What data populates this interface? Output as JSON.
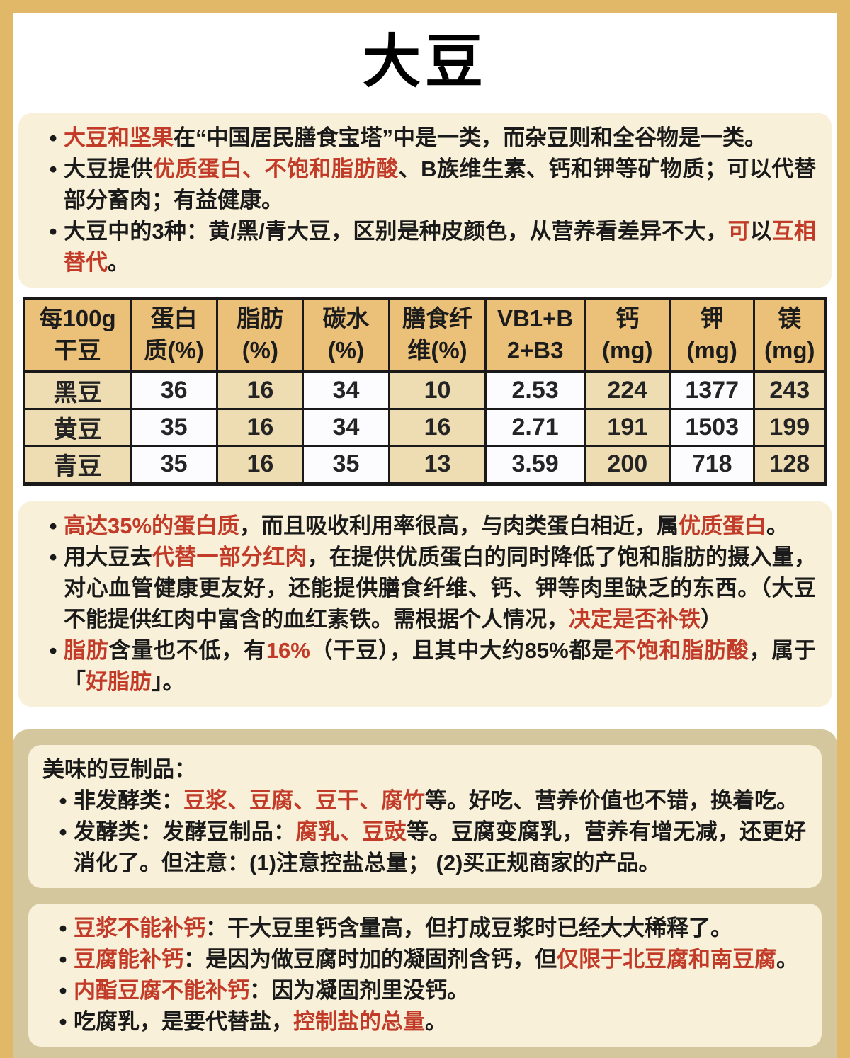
{
  "page": {
    "title": "大豆"
  },
  "glyphs": {
    "bullet": "•"
  },
  "colors": {
    "outer_border": "#e1b867",
    "panel_cream": "#f8f0d8",
    "bottom_container_tan": "#d5c79d",
    "table_header_bg": "#ebc078",
    "table_tan_cell": "#eedcb2",
    "accent_red": "#c23a28",
    "text_black": "#1a1a1a"
  },
  "sections": {
    "intro": {
      "bullets": [
        [
          {
            "t": "大豆和坚果",
            "c": "red"
          },
          {
            "t": "在“中国居民膳食宝塔”中是一类，而杂豆则和全谷物是一类。"
          }
        ],
        [
          {
            "t": "大豆提供"
          },
          {
            "t": "优质蛋白、不饱和脂肪酸",
            "c": "red"
          },
          {
            "t": "、B族维生素、钙和钾等矿物质；可以代替部分畜肉；有益健康。"
          }
        ],
        [
          {
            "t": "大豆中的3种：黄/黑/青大豆，区别是种皮颜色，从营养看差异不大，"
          },
          {
            "t": "可",
            "c": "red"
          },
          {
            "t": "以"
          },
          {
            "t": "互相替代",
            "c": "red"
          },
          {
            "t": "。"
          }
        ]
      ]
    },
    "analysis": {
      "bullets": [
        [
          {
            "t": "高达35%的蛋白质",
            "c": "red"
          },
          {
            "t": "，而且吸收利用率很高，与肉类蛋白相近，属"
          },
          {
            "t": "优质蛋白",
            "c": "red"
          },
          {
            "t": "。"
          }
        ],
        [
          {
            "t": "用大豆去"
          },
          {
            "t": "代替一部分红肉",
            "c": "red"
          },
          {
            "t": "，在提供优质蛋白的同时降低了饱和脂肪的摄入量，对心血管健康更友好，还能提供膳食纤维、钙、钾等肉里缺乏的东西。（大豆不能提供红肉中富含的血红素铁。需根据个人情况，"
          },
          {
            "t": "决定是否补铁",
            "c": "red"
          },
          {
            "t": "）"
          }
        ],
        [
          {
            "t": "脂肪",
            "c": "red"
          },
          {
            "t": "含量也不低，有"
          },
          {
            "t": "16%",
            "c": "red"
          },
          {
            "t": "（干豆），且其中大约85%都是"
          },
          {
            "t": "不饱和脂肪酸",
            "c": "red"
          },
          {
            "t": "，属于「"
          },
          {
            "t": "好脂肪",
            "c": "red"
          },
          {
            "t": "」。"
          }
        ]
      ]
    },
    "products": {
      "header": "美味的豆制品：",
      "bullets": [
        [
          {
            "t": "非发酵类："
          },
          {
            "t": "豆浆、豆腐、豆干、腐竹",
            "c": "red"
          },
          {
            "t": "等。好吃、营养价值也不错，换着吃。"
          }
        ],
        [
          {
            "t": "发酵类：发酵豆制品："
          },
          {
            "t": "腐乳、豆豉",
            "c": "red"
          },
          {
            "t": "等。豆腐变腐乳，营养有增无减，还更好消化了。但注意：(1)注意控盐总量； (2)买正规商家的产品。"
          }
        ]
      ]
    },
    "calcium": {
      "bullets": [
        [
          {
            "t": "豆浆不能补钙",
            "c": "red"
          },
          {
            "t": "：干大豆里钙含量高，但打成豆浆时已经大大稀释了。"
          }
        ],
        [
          {
            "t": "豆腐能补钙",
            "c": "red"
          },
          {
            "t": "：是因为做豆腐时加的凝固剂含钙，但"
          },
          {
            "t": "仅限于北豆腐和南豆腐",
            "c": "red"
          },
          {
            "t": "。"
          }
        ],
        [
          {
            "t": "内酯豆腐不能补钙",
            "c": "red"
          },
          {
            "t": "：因为凝固剂里没钙。"
          }
        ],
        [
          {
            "t": "吃腐乳，是要代替盐，"
          },
          {
            "t": "控制盐的总量",
            "c": "red"
          },
          {
            "t": "。"
          }
        ]
      ]
    }
  },
  "table": {
    "headers": [
      "每100g\n干豆",
      "蛋白\n质(%)",
      "脂肪\n(%)",
      "碳水\n(%)",
      "膳食纤\n维(%)",
      "VB1+B\n2+B3",
      "钙\n(mg)",
      "钾\n(mg)",
      "镁\n(mg)"
    ],
    "rows": [
      {
        "values": [
          "黑豆",
          "36",
          "16",
          "34",
          "10",
          "2.53",
          "224",
          "1377",
          "243"
        ]
      },
      {
        "values": [
          "黄豆",
          "35",
          "16",
          "34",
          "16",
          "2.71",
          "191",
          "1503",
          "199"
        ]
      },
      {
        "values": [
          "青豆",
          "35",
          "16",
          "35",
          "13",
          "3.59",
          "200",
          "718",
          "128"
        ]
      }
    ]
  }
}
